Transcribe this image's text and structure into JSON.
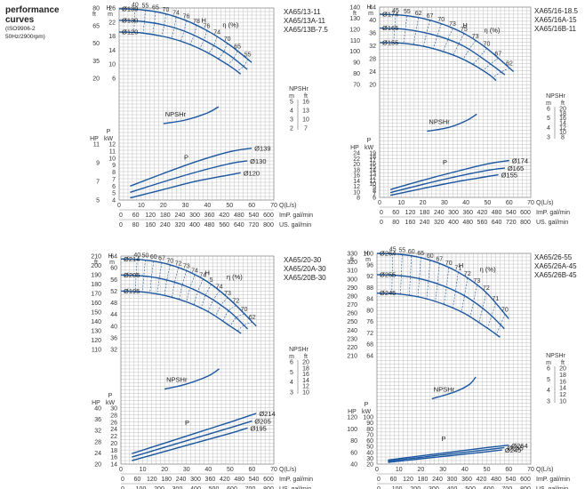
{
  "header": {
    "title_line1": "performance",
    "title_line2": "curves",
    "standard": "(ISO9906-2",
    "frequency": "50Hz/2900rpm)"
  },
  "colors": {
    "curve": "#1a56a0",
    "grid": "#bfbfbf",
    "text": "#333333"
  },
  "axis_words": {
    "H": "H",
    "ft": "ft",
    "m": "m",
    "P": "P",
    "HP": "HP",
    "kW": "kW",
    "NPSHr": "NPSHr",
    "eta": "η (%)",
    "q": "Q(L/s)",
    "imp": "ImP. gal/min",
    "us": "US. gal/min"
  },
  "chart_data": [
    {
      "type": "line",
      "legend": [
        "XA65/13-11",
        "XA65/13A-11",
        "XA65/13B-7.5"
      ],
      "q_range": [
        0,
        70
      ],
      "q_ticks": [
        "0",
        "10",
        "20",
        "30",
        "40",
        "50",
        "60",
        "70"
      ],
      "imp_ticks": [
        "0",
        "60",
        "120",
        "180",
        "240",
        "300",
        "360",
        "420",
        "480",
        "540",
        "600"
      ],
      "us_ticks": [
        "0",
        "80",
        "160",
        "240",
        "320",
        "400",
        "480",
        "560",
        "640",
        "720",
        "800"
      ],
      "head_m_ticks": [
        "6",
        "10",
        "14",
        "18",
        "22",
        "26"
      ],
      "head_ft_ticks": [
        "20",
        "35",
        "50",
        "65",
        "80"
      ],
      "npsh_m_ticks": [
        "2",
        "3",
        "4",
        "5"
      ],
      "npsh_ft_ticks": [
        "7",
        "10",
        "13",
        "16"
      ],
      "power_kw_ticks": [
        "4",
        "5",
        "6",
        "7",
        "8",
        "9",
        "10",
        "11",
        "12"
      ],
      "power_hp_ticks": [
        "5",
        "7",
        "9",
        "11"
      ],
      "head_curves": [
        {
          "name": "Ø139",
          "q": [
            0,
            10,
            20,
            30,
            40,
            50,
            60
          ],
          "h": [
            25.8,
            25.5,
            24.5,
            22.5,
            19.5,
            15.5,
            10.5
          ]
        },
        {
          "name": "Ø130",
          "q": [
            0,
            10,
            20,
            30,
            40,
            50,
            58
          ],
          "h": [
            22.5,
            22.2,
            21.2,
            19.3,
            16.3,
            12.5,
            8.5
          ]
        },
        {
          "name": "Ø120",
          "q": [
            0,
            10,
            20,
            30,
            40,
            50,
            55
          ],
          "h": [
            19.2,
            18.9,
            17.9,
            16.1,
            13.3,
            9.5,
            7.2
          ]
        }
      ],
      "eff_labels": [
        "40",
        "55",
        "65",
        "70",
        "74",
        "76",
        "78",
        "76",
        "74",
        "70",
        "65",
        "55"
      ],
      "npsh_curve": {
        "q": [
          20,
          30,
          40,
          45
        ],
        "v": [
          2.5,
          2.9,
          3.7,
          4.4
        ]
      },
      "power_curves": [
        {
          "name": "Ø139",
          "q": [
            5,
            20,
            35,
            50,
            60
          ],
          "kw": [
            6.0,
            7.8,
            9.5,
            10.9,
            11.4
          ]
        },
        {
          "name": "Ø130",
          "q": [
            5,
            20,
            35,
            50,
            58
          ],
          "kw": [
            5.1,
            6.6,
            8.0,
            9.2,
            9.6
          ]
        },
        {
          "name": "Ø120",
          "q": [
            5,
            20,
            35,
            50,
            55
          ],
          "kw": [
            4.3,
            5.5,
            6.7,
            7.6,
            7.9
          ]
        }
      ],
      "power_labels": [
        "Ø139",
        "Ø130",
        "Ø120"
      ]
    },
    {
      "type": "line",
      "legend": [
        "XA65/16-18.5",
        "XA65/16A-15",
        "XA65/16B-11"
      ],
      "q_range": [
        0,
        70
      ],
      "q_ticks": [
        "0",
        "10",
        "20",
        "30",
        "40",
        "50",
        "60",
        "70"
      ],
      "imp_ticks": [
        "0",
        "60",
        "120",
        "180",
        "240",
        "300",
        "360",
        "420",
        "480",
        "540",
        "600"
      ],
      "us_ticks": [
        "0",
        "80",
        "160",
        "240",
        "320",
        "400",
        "480",
        "560",
        "640",
        "720",
        "800"
      ],
      "head_m_ticks": [
        "20",
        "24",
        "28",
        "32",
        "36",
        "40",
        "44"
      ],
      "head_ft_ticks": [
        "70",
        "80",
        "90",
        "100",
        "110",
        "120",
        "130",
        "140"
      ],
      "npsh_m_ticks": [
        "3",
        "4",
        "5",
        "6"
      ],
      "npsh_ft_ticks": [
        "8",
        "10",
        "12",
        "14",
        "16",
        "18",
        "20"
      ],
      "power_kw_ticks": [
        "6",
        "7",
        "8",
        "9",
        "10",
        "11",
        "12",
        "13",
        "14",
        "15",
        "16",
        "17",
        "18",
        "19"
      ],
      "power_hp_ticks": [
        "8",
        "10",
        "12",
        "14",
        "16",
        "18",
        "20",
        "22",
        "24"
      ],
      "head_curves": [
        {
          "name": "Ø174",
          "q": [
            0,
            10,
            20,
            30,
            40,
            50,
            62
          ],
          "h": [
            41.8,
            41.5,
            40.5,
            38.5,
            35.5,
            31.0,
            24.0
          ]
        },
        {
          "name": "Ø165",
          "q": [
            0,
            10,
            20,
            30,
            40,
            50,
            58
          ],
          "h": [
            37.5,
            37.2,
            36.2,
            34.4,
            31.5,
            27.0,
            23.0
          ]
        },
        {
          "name": "Ø155",
          "q": [
            0,
            10,
            20,
            30,
            40,
            50,
            54
          ],
          "h": [
            33.0,
            32.8,
            31.9,
            30.1,
            27.4,
            23.4,
            21.2
          ]
        }
      ],
      "eff_labels": [
        "45",
        "55",
        "62",
        "67",
        "70",
        "73",
        "75",
        "73",
        "70",
        "67",
        "62"
      ],
      "npsh_curve": {
        "q": [
          22,
          32,
          40,
          45
        ],
        "v": [
          3.6,
          4.0,
          4.7,
          5.4
        ]
      },
      "power_curves": [
        {
          "name": "Ø174",
          "q": [
            5,
            20,
            35,
            50,
            60
          ],
          "kw": [
            8.3,
            11.0,
            13.5,
            15.8,
            16.8
          ]
        },
        {
          "name": "Ø165",
          "q": [
            5,
            20,
            35,
            50,
            58
          ],
          "kw": [
            7.4,
            9.8,
            12.0,
            13.9,
            14.6
          ]
        },
        {
          "name": "Ø155",
          "q": [
            5,
            20,
            35,
            50,
            55
          ],
          "kw": [
            6.6,
            8.6,
            10.5,
            12.1,
            12.6
          ]
        }
      ],
      "power_labels": [
        "Ø174",
        "Ø165",
        "Ø155"
      ]
    },
    {
      "type": "line",
      "legend": [
        "XA65/20-30",
        "XA65/20A-30",
        "XA65/20B-30"
      ],
      "q_range": [
        0,
        70
      ],
      "q_ticks": [
        "0",
        "10",
        "20",
        "30",
        "40",
        "50",
        "60",
        "70"
      ],
      "imp_ticks": [
        "0",
        "60",
        "120",
        "180",
        "240",
        "300",
        "360",
        "420",
        "480",
        "540",
        "600"
      ],
      "us_ticks": [
        "0",
        "100",
        "200",
        "300",
        "400",
        "500",
        "600",
        "700",
        "800"
      ],
      "head_m_ticks": [
        "32",
        "36",
        "40",
        "44",
        "48",
        "52",
        "56",
        "60",
        "64"
      ],
      "head_ft_ticks": [
        "110",
        "120",
        "130",
        "140",
        "150",
        "160",
        "170",
        "180",
        "190",
        "200",
        "210"
      ],
      "npsh_m_ticks": [
        "3",
        "4",
        "5",
        "6"
      ],
      "npsh_ft_ticks": [
        "10",
        "12",
        "14",
        "16",
        "18",
        "20"
      ],
      "power_kw_ticks": [
        "14",
        "16",
        "18",
        "20",
        "22",
        "24",
        "26",
        "28",
        "30"
      ],
      "power_hp_ticks": [
        "20",
        "24",
        "28",
        "32",
        "36",
        "40"
      ],
      "head_curves": [
        {
          "name": "Ø214",
          "q": [
            0,
            10,
            20,
            30,
            40,
            50,
            62
          ],
          "h": [
            63.0,
            62.7,
            61.5,
            59.0,
            55.0,
            49.0,
            40.0
          ]
        },
        {
          "name": "Ø205",
          "q": [
            0,
            10,
            20,
            30,
            40,
            50,
            58
          ],
          "h": [
            57.5,
            57.2,
            56.0,
            53.6,
            50.0,
            44.8,
            39.0
          ]
        },
        {
          "name": "Ø195",
          "q": [
            0,
            10,
            20,
            30,
            40,
            50,
            55
          ],
          "h": [
            52.0,
            51.7,
            50.5,
            48.3,
            44.9,
            40.0,
            37.5
          ]
        }
      ],
      "eff_labels": [
        "40",
        "50",
        "60",
        "67",
        "70",
        "72",
        "73",
        "74",
        "74",
        "5",
        "74",
        "73",
        "72",
        "70",
        "62"
      ],
      "npsh_curve": {
        "q": [
          20,
          30,
          40,
          45
        ],
        "v": [
          3.3,
          3.8,
          4.6,
          5.3
        ]
      },
      "power_curves": [
        {
          "name": "Ø214",
          "q": [
            5,
            20,
            35,
            50,
            62
          ],
          "kw": [
            17.0,
            20.0,
            23.0,
            26.0,
            28.5
          ]
        },
        {
          "name": "Ø205",
          "q": [
            5,
            20,
            35,
            50,
            60
          ],
          "kw": [
            16.0,
            18.8,
            21.6,
            24.4,
            26.3
          ]
        },
        {
          "name": "Ø195",
          "q": [
            5,
            20,
            35,
            50,
            58
          ],
          "kw": [
            15.0,
            17.6,
            20.2,
            22.8,
            24.3
          ]
        }
      ],
      "power_labels": [
        "Ø214",
        "Ø205",
        "Ø195"
      ]
    },
    {
      "type": "line",
      "legend": [
        "XA65/26-55",
        "XA65/26A-45",
        "XA65/26B-45"
      ],
      "q_range": [
        0,
        70
      ],
      "q_ticks": [
        "0",
        "10",
        "20",
        "30",
        "40",
        "50",
        "60",
        "70"
      ],
      "imp_ticks": [
        "0",
        "60",
        "120",
        "180",
        "240",
        "300",
        "360",
        "420",
        "480",
        "540",
        "600"
      ],
      "us_ticks": [
        "0",
        "100",
        "200",
        "300",
        "400",
        "500",
        "600",
        "700",
        "800"
      ],
      "head_m_ticks": [
        "64",
        "68",
        "72",
        "76",
        "80",
        "84",
        "88",
        "92",
        "96",
        "100"
      ],
      "head_ft_ticks": [
        "210",
        "220",
        "230",
        "240",
        "250",
        "260",
        "270",
        "280",
        "290",
        "300",
        "310",
        "320",
        "330"
      ],
      "npsh_m_ticks": [
        "3",
        "4",
        "5",
        "6"
      ],
      "npsh_ft_ticks": [
        "10",
        "12",
        "14",
        "16",
        "18",
        "20"
      ],
      "power_kw_ticks": [
        "20",
        "30",
        "40",
        "50",
        "60",
        "70",
        "80",
        "90",
        "100"
      ],
      "power_hp_ticks": [
        "40",
        "60",
        "80",
        "100",
        "120"
      ],
      "head_curves": [
        {
          "name": "Ø264",
          "q": [
            0,
            10,
            20,
            30,
            40,
            50,
            60
          ],
          "h": [
            100.0,
            99.7,
            98.5,
            96.0,
            92.0,
            86.0,
            77.0
          ]
        },
        {
          "name": "Ø255",
          "q": [
            0,
            10,
            20,
            30,
            40,
            50,
            58
          ],
          "h": [
            92.5,
            92.2,
            91.0,
            88.6,
            85.0,
            79.5,
            73.5
          ]
        },
        {
          "name": "Ø245",
          "q": [
            0,
            10,
            20,
            30,
            40,
            50,
            56
          ],
          "h": [
            86.0,
            85.7,
            84.5,
            82.2,
            78.8,
            73.8,
            70.5
          ]
        }
      ],
      "eff_labels": [
        "45",
        "55",
        "60",
        "65",
        "60",
        "67",
        "70",
        "71",
        "72",
        "73",
        "72",
        "71",
        "70"
      ],
      "npsh_curve": {
        "q": [
          25,
          35,
          42,
          45
        ],
        "v": [
          3.2,
          3.8,
          4.5,
          5.2
        ]
      },
      "power_curves": [
        {
          "name": "Ø264",
          "q": [
            5,
            20,
            35,
            50,
            60
          ],
          "kw": [
            27.0,
            34.0,
            41.0,
            48.0,
            52.0
          ]
        },
        {
          "name": "Ø255",
          "q": [
            5,
            20,
            35,
            50,
            58
          ],
          "kw": [
            25.0,
            31.5,
            38.0,
            44.5,
            48.0
          ]
        },
        {
          "name": "Ø245",
          "q": [
            5,
            20,
            35,
            50,
            57
          ],
          "kw": [
            23.0,
            29.0,
            35.0,
            41.0,
            44.0
          ]
        }
      ],
      "power_labels": [
        "Ø264",
        "Ø255",
        "Ø245"
      ]
    }
  ]
}
